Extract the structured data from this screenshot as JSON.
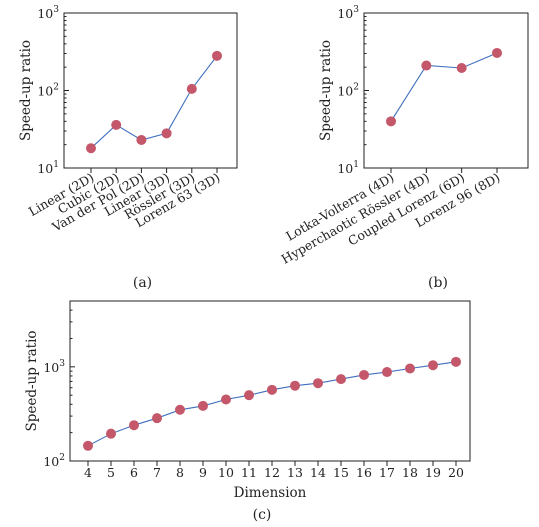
{
  "colors": {
    "line": "#3f6fbf",
    "marker": "#c4576a",
    "axis": "#222222"
  },
  "chart_data": [
    {
      "id": "a",
      "type": "line",
      "panel_label": "(a)",
      "ylabel": "Speed-up ratio",
      "xlabel": "",
      "yscale": "log",
      "ylim": [
        10,
        1000
      ],
      "yticks": [
        {
          "value": 10,
          "base": "10",
          "exp": "1"
        },
        {
          "value": 100,
          "base": "10",
          "exp": "2"
        },
        {
          "value": 1000,
          "base": "10",
          "exp": "3"
        }
      ],
      "categories": [
        "Linear (2D)",
        "Cubic (2D)",
        "Van der Pol (2D)",
        "Linear (3D)",
        "Rössler (3D)",
        "Lorenz 63 (3D)"
      ],
      "values": [
        18,
        36,
        23,
        28,
        105,
        280
      ]
    },
    {
      "id": "b",
      "type": "line",
      "panel_label": "(b)",
      "ylabel": "Speed-up ratio",
      "xlabel": "",
      "yscale": "log",
      "ylim": [
        10,
        1000
      ],
      "yticks": [
        {
          "value": 10,
          "base": "10",
          "exp": "1"
        },
        {
          "value": 100,
          "base": "10",
          "exp": "2"
        },
        {
          "value": 1000,
          "base": "10",
          "exp": "3"
        }
      ],
      "categories": [
        "Lotka-Volterra (4D)",
        "Hyperchaotic Rössler (4D)",
        "Coupled Lorenz (6D)",
        "Lorenz 96 (8D)"
      ],
      "values": [
        40,
        210,
        195,
        305
      ]
    },
    {
      "id": "c",
      "type": "line",
      "panel_label": "(c)",
      "ylabel": "Speed-up ratio",
      "xlabel": "Dimension",
      "yscale": "log",
      "ylim": [
        100,
        5000
      ],
      "yticks": [
        {
          "value": 100,
          "base": "10",
          "exp": "2"
        },
        {
          "value": 1000,
          "base": "10",
          "exp": "3"
        }
      ],
      "x": [
        4,
        5,
        6,
        7,
        8,
        9,
        10,
        11,
        12,
        13,
        14,
        15,
        16,
        17,
        18,
        19,
        20
      ],
      "values": [
        145,
        195,
        240,
        285,
        350,
        385,
        450,
        500,
        570,
        630,
        670,
        740,
        820,
        880,
        960,
        1040,
        1130
      ]
    }
  ]
}
